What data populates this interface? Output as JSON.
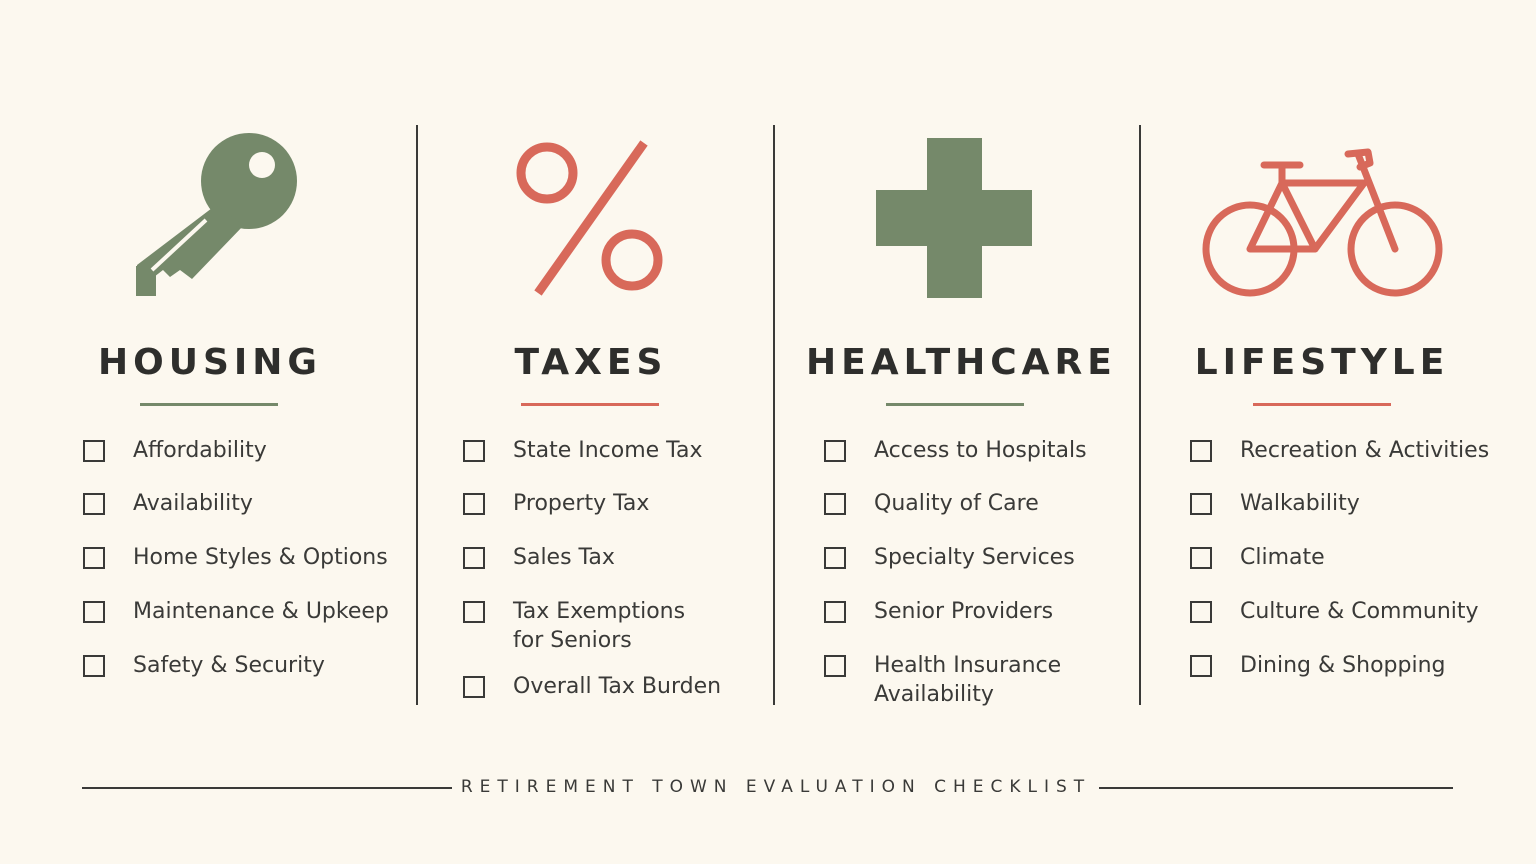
{
  "colors": {
    "green": "#75896a",
    "coral": "#d8695a",
    "background": "#fcf8ef",
    "ink": "#2e2e2c"
  },
  "columns": [
    {
      "title": "HOUSING",
      "icon": "key-icon",
      "accent": "green",
      "items": [
        "Affordability",
        "Availability",
        "Home Styles & Options",
        "Maintenance & Upkeep",
        "Safety & Security"
      ]
    },
    {
      "title": "TAXES",
      "icon": "percent-icon",
      "accent": "coral",
      "items": [
        "State Income Tax",
        "Property Tax",
        "Sales Tax",
        "Tax Exemptions\nfor Seniors",
        "Overall Tax Burden"
      ]
    },
    {
      "title": "HEALTHCARE",
      "icon": "medical-cross-icon",
      "accent": "green",
      "items": [
        "Access to Hospitals",
        "Quality of Care",
        "Specialty Services",
        "Senior Providers",
        "Health Insurance\nAvailability"
      ]
    },
    {
      "title": "LIFESTYLE",
      "icon": "bicycle-icon",
      "accent": "coral",
      "items": [
        "Recreation & Activities",
        "Walkability",
        "Climate",
        "Culture & Community",
        "Dining & Shopping"
      ]
    }
  ],
  "footer": {
    "caption": "RETIREMENT TOWN EVALUATION CHECKLIST"
  }
}
